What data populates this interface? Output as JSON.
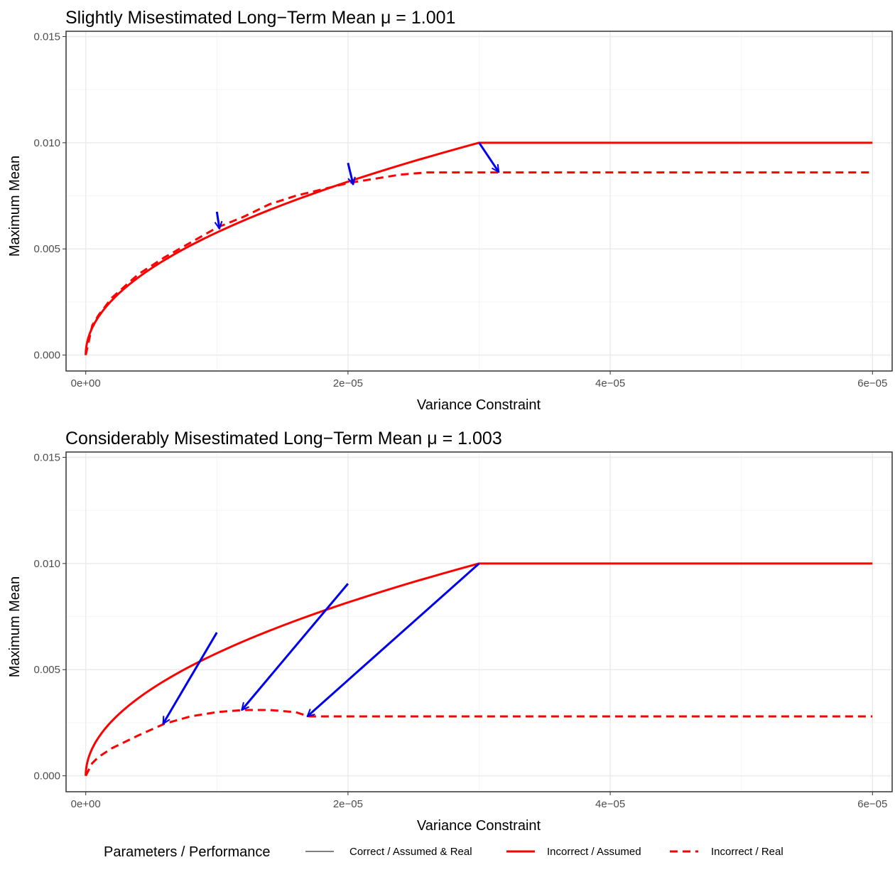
{
  "chart_data": [
    {
      "type": "line",
      "title": "Slightly Misestimated Long−Term Mean μ = 1.001",
      "xlabel": "Variance Constraint",
      "ylabel": "Maximum Mean",
      "xlim": [
        -1.5e-06,
        6.15e-05
      ],
      "ylim": [
        -0.00075,
        0.01525
      ],
      "x_ticks": [
        0,
        2e-05,
        4e-05,
        6e-05
      ],
      "x_tick_labels": [
        "0e+00",
        "2e−05",
        "4e−05",
        "6e−05"
      ],
      "y_ticks": [
        0,
        0.005,
        0.01,
        0.015
      ],
      "y_tick_labels": [
        "0.000",
        "0.005",
        "0.010",
        "0.015"
      ],
      "grid": true,
      "series": [
        {
          "name": "Incorrect / Assumed",
          "style": "solid",
          "color": "#ff0000",
          "kind": "sqrt",
          "scale": 0.01,
          "cap_x": 3e-05,
          "x_end": 6e-05
        },
        {
          "name": "Incorrect / Real",
          "style": "dashed",
          "color": "#ff0000",
          "points": [
            [
              0,
              0
            ],
            [
              5e-07,
              0.0014
            ],
            [
              1e-06,
              0.0019
            ],
            [
              2e-06,
              0.0027
            ],
            [
              4e-06,
              0.0038
            ],
            [
              6e-06,
              0.0046
            ],
            [
              8e-06,
              0.0053
            ],
            [
              1e-05,
              0.006
            ],
            [
              1.2e-05,
              0.0065
            ],
            [
              1.4e-05,
              0.0071
            ],
            [
              1.6e-05,
              0.0075
            ],
            [
              1.8e-05,
              0.0078
            ],
            [
              2e-05,
              0.0081
            ],
            [
              2.2e-05,
              0.0083
            ],
            [
              2.4e-05,
              0.0085
            ],
            [
              2.6e-05,
              0.0086
            ],
            [
              2.8e-05,
              0.0086
            ],
            [
              3e-05,
              0.0086
            ],
            [
              6e-05,
              0.0086
            ]
          ]
        }
      ],
      "arrows": [
        {
          "from": [
            1e-05,
            0.00675
          ],
          "to": [
            1.02e-05,
            0.00595
          ]
        },
        {
          "from": [
            2e-05,
            0.00905
          ],
          "to": [
            2.04e-05,
            0.00803
          ]
        },
        {
          "from": [
            3e-05,
            0.01
          ],
          "to": [
            3.15e-05,
            0.00862
          ]
        }
      ]
    },
    {
      "type": "line",
      "title": "Considerably Misestimated Long−Term Mean μ = 1.003",
      "xlabel": "Variance Constraint",
      "ylabel": "Maximum Mean",
      "xlim": [
        -1.5e-06,
        6.15e-05
      ],
      "ylim": [
        -0.00075,
        0.01525
      ],
      "x_ticks": [
        0,
        2e-05,
        4e-05,
        6e-05
      ],
      "x_tick_labels": [
        "0e+00",
        "2e−05",
        "4e−05",
        "6e−05"
      ],
      "y_ticks": [
        0,
        0.005,
        0.01,
        0.015
      ],
      "y_tick_labels": [
        "0.000",
        "0.005",
        "0.010",
        "0.015"
      ],
      "grid": true,
      "series": [
        {
          "name": "Incorrect / Assumed",
          "style": "solid",
          "color": "#ff0000",
          "kind": "sqrt",
          "scale": 0.01,
          "cap_x": 3e-05,
          "x_end": 6e-05
        },
        {
          "name": "Incorrect / Real",
          "style": "dashed",
          "color": "#ff0000",
          "points": [
            [
              0,
              0
            ],
            [
              5e-07,
              0.0006
            ],
            [
              1e-06,
              0.0009
            ],
            [
              2e-06,
              0.0013
            ],
            [
              4e-06,
              0.0019
            ],
            [
              6e-06,
              0.00245
            ],
            [
              8e-06,
              0.0028
            ],
            [
              1e-05,
              0.003
            ],
            [
              1.2e-05,
              0.0031
            ],
            [
              1.4e-05,
              0.0031
            ],
            [
              1.6e-05,
              0.003
            ],
            [
              1.7e-05,
              0.0028
            ],
            [
              6e-05,
              0.0028
            ]
          ]
        }
      ],
      "arrows": [
        {
          "from": [
            1e-05,
            0.00675
          ],
          "to": [
            5.9e-06,
            0.00245
          ]
        },
        {
          "from": [
            2e-05,
            0.00905
          ],
          "to": [
            1.19e-05,
            0.0031
          ]
        },
        {
          "from": [
            3e-05,
            0.01
          ],
          "to": [
            1.69e-05,
            0.0028
          ]
        }
      ]
    }
  ],
  "legend": {
    "title": "Parameters / Performance",
    "position": "bottom",
    "items": [
      {
        "label": "Correct / Assumed & Real",
        "color": "#000000",
        "style": "thin-solid"
      },
      {
        "label": "Incorrect / Assumed",
        "color": "#ff0000",
        "style": "solid"
      },
      {
        "label": "Incorrect / Real",
        "color": "#ff0000",
        "style": "dashed"
      }
    ]
  },
  "colors": {
    "assumed": "#ff0000",
    "real": "#ff0000",
    "arrow": "#0000ee",
    "grid_major": "#ebebeb",
    "grid_minor": "#f4f4f4"
  }
}
